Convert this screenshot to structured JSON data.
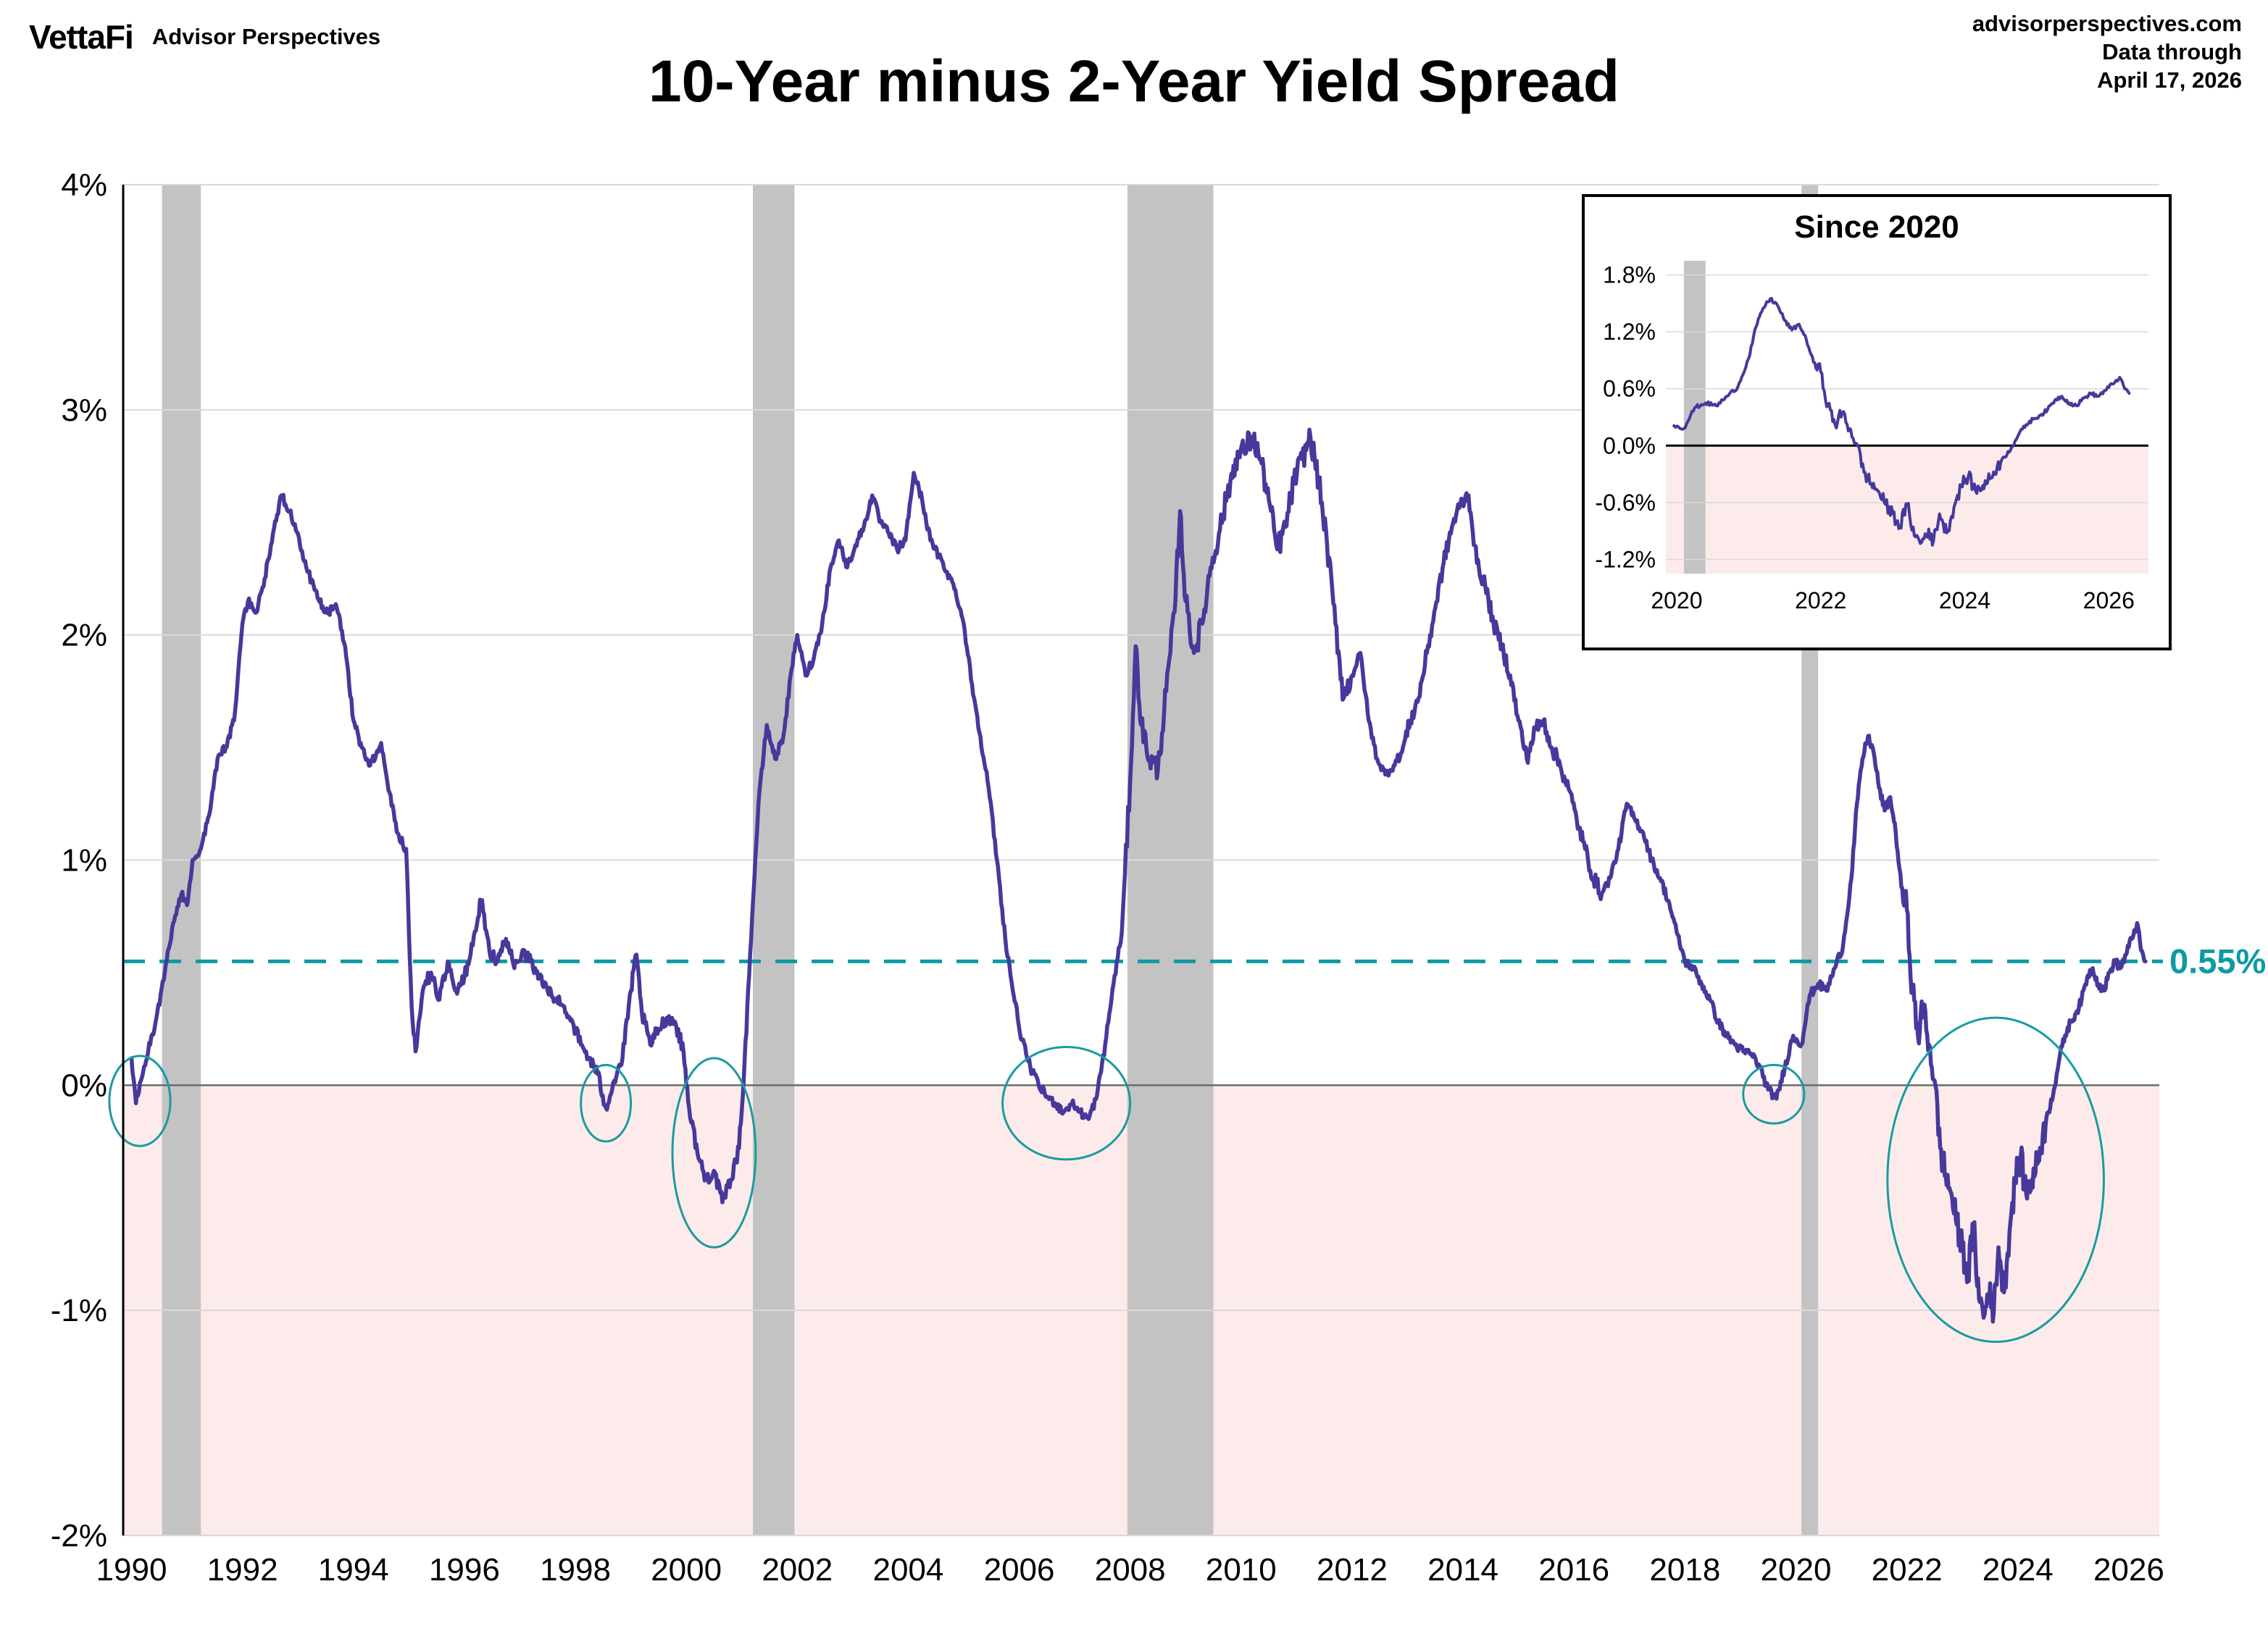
{
  "header": {
    "logo": "VettaFi",
    "logo_sub": "Advisor Perspectives",
    "title": "10-Year minus 2-Year Yield Spread",
    "source": "advisorperspectives.com",
    "data_through_label": "Data through",
    "data_through_date": "April 17, 2026"
  },
  "chart_data": {
    "type": "line",
    "title": "10-Year minus 2-Year Yield Spread",
    "xlabel": "",
    "ylabel": "",
    "xlim": [
      1989.85,
      2026.55
    ],
    "ylim": [
      -2,
      4
    ],
    "grid": true,
    "y_tick_values": [
      4,
      3,
      2,
      1,
      0,
      -1,
      -2
    ],
    "y_tick_labels": [
      "4%",
      "3%",
      "2%",
      "1%",
      "0%",
      "-1%",
      "-2%"
    ],
    "x_ticks": [
      1990,
      1992,
      1994,
      1996,
      1998,
      2000,
      2002,
      2004,
      2006,
      2008,
      2010,
      2012,
      2014,
      2016,
      2018,
      2020,
      2022,
      2024,
      2026
    ],
    "colors": {
      "line": "#46399b",
      "teal": "#0d9aa4",
      "recession": "#c3c3c3",
      "negative_fill": "#fcebea",
      "gridline": "#d9d9d9",
      "zero_line": "#6b6b6b"
    },
    "reference_line": {
      "value": 0.55,
      "label": "0.55%"
    },
    "recessions": [
      [
        1990.55,
        1991.25
      ],
      [
        2001.2,
        2001.95
      ],
      [
        2007.95,
        2009.5
      ],
      [
        2020.1,
        2020.4
      ]
    ],
    "inversion_circles": [
      {
        "cx": 1990.15,
        "cy": -0.07,
        "rx": 0.55,
        "ry": 0.2
      },
      {
        "cx": 1998.55,
        "cy": -0.08,
        "rx": 0.45,
        "ry": 0.17
      },
      {
        "cx": 2000.5,
        "cy": -0.3,
        "rx": 0.75,
        "ry": 0.42
      },
      {
        "cx": 2006.85,
        "cy": -0.08,
        "rx": 1.15,
        "ry": 0.25
      },
      {
        "cx": 2019.6,
        "cy": -0.04,
        "rx": 0.55,
        "ry": 0.13
      },
      {
        "cx": 2023.6,
        "cy": -0.42,
        "rx": 1.95,
        "ry": 0.72
      }
    ],
    "series": [
      {
        "name": "10-Year minus 2-Year Treasury Yield Spread",
        "points": [
          [
            1990.0,
            0.12
          ],
          [
            1990.08,
            -0.08
          ],
          [
            1990.17,
            0.02
          ],
          [
            1990.3,
            0.15
          ],
          [
            1990.45,
            0.3
          ],
          [
            1990.6,
            0.5
          ],
          [
            1990.75,
            0.72
          ],
          [
            1990.9,
            0.85
          ],
          [
            1991.0,
            0.8
          ],
          [
            1991.1,
            1.0
          ],
          [
            1991.25,
            1.05
          ],
          [
            1991.4,
            1.2
          ],
          [
            1991.55,
            1.45
          ],
          [
            1991.7,
            1.5
          ],
          [
            1991.85,
            1.62
          ],
          [
            1992.0,
            2.05
          ],
          [
            1992.1,
            2.15
          ],
          [
            1992.25,
            2.1
          ],
          [
            1992.4,
            2.25
          ],
          [
            1992.55,
            2.45
          ],
          [
            1992.7,
            2.62
          ],
          [
            1992.85,
            2.55
          ],
          [
            1993.0,
            2.45
          ],
          [
            1993.15,
            2.3
          ],
          [
            1993.3,
            2.2
          ],
          [
            1993.5,
            2.1
          ],
          [
            1993.7,
            2.12
          ],
          [
            1993.85,
            1.95
          ],
          [
            1994.0,
            1.62
          ],
          [
            1994.15,
            1.5
          ],
          [
            1994.3,
            1.42
          ],
          [
            1994.5,
            1.52
          ],
          [
            1994.65,
            1.3
          ],
          [
            1994.8,
            1.12
          ],
          [
            1994.95,
            1.05
          ],
          [
            1995.05,
            0.35
          ],
          [
            1995.12,
            0.15
          ],
          [
            1995.25,
            0.42
          ],
          [
            1995.4,
            0.5
          ],
          [
            1995.55,
            0.38
          ],
          [
            1995.7,
            0.55
          ],
          [
            1995.85,
            0.42
          ],
          [
            1996.0,
            0.48
          ],
          [
            1996.15,
            0.62
          ],
          [
            1996.3,
            0.82
          ],
          [
            1996.45,
            0.6
          ],
          [
            1996.6,
            0.55
          ],
          [
            1996.75,
            0.65
          ],
          [
            1996.9,
            0.52
          ],
          [
            1997.05,
            0.6
          ],
          [
            1997.2,
            0.55
          ],
          [
            1997.35,
            0.48
          ],
          [
            1997.5,
            0.42
          ],
          [
            1997.65,
            0.38
          ],
          [
            1997.8,
            0.35
          ],
          [
            1997.95,
            0.28
          ],
          [
            1998.1,
            0.18
          ],
          [
            1998.25,
            0.12
          ],
          [
            1998.4,
            0.05
          ],
          [
            1998.55,
            -0.1
          ],
          [
            1998.7,
            0.02
          ],
          [
            1998.85,
            0.12
          ],
          [
            1999.0,
            0.42
          ],
          [
            1999.1,
            0.58
          ],
          [
            1999.2,
            0.32
          ],
          [
            1999.35,
            0.18
          ],
          [
            1999.5,
            0.25
          ],
          [
            1999.65,
            0.3
          ],
          [
            1999.8,
            0.28
          ],
          [
            1999.95,
            0.15
          ],
          [
            2000.05,
            -0.1
          ],
          [
            2000.2,
            -0.3
          ],
          [
            2000.35,
            -0.42
          ],
          [
            2000.5,
            -0.38
          ],
          [
            2000.65,
            -0.52
          ],
          [
            2000.8,
            -0.42
          ],
          [
            2000.95,
            -0.28
          ],
          [
            2001.05,
            0.1
          ],
          [
            2001.15,
            0.58
          ],
          [
            2001.3,
            1.25
          ],
          [
            2001.45,
            1.6
          ],
          [
            2001.6,
            1.45
          ],
          [
            2001.75,
            1.55
          ],
          [
            2001.9,
            1.85
          ],
          [
            2002.0,
            2.0
          ],
          [
            2002.15,
            1.82
          ],
          [
            2002.3,
            1.9
          ],
          [
            2002.45,
            2.05
          ],
          [
            2002.6,
            2.3
          ],
          [
            2002.75,
            2.42
          ],
          [
            2002.9,
            2.3
          ],
          [
            2003.05,
            2.4
          ],
          [
            2003.2,
            2.48
          ],
          [
            2003.35,
            2.62
          ],
          [
            2003.5,
            2.5
          ],
          [
            2003.65,
            2.45
          ],
          [
            2003.8,
            2.38
          ],
          [
            2003.95,
            2.42
          ],
          [
            2004.1,
            2.72
          ],
          [
            2004.25,
            2.6
          ],
          [
            2004.4,
            2.42
          ],
          [
            2004.55,
            2.35
          ],
          [
            2004.7,
            2.28
          ],
          [
            2004.85,
            2.2
          ],
          [
            2005.0,
            2.05
          ],
          [
            2005.15,
            1.78
          ],
          [
            2005.3,
            1.55
          ],
          [
            2005.45,
            1.32
          ],
          [
            2005.6,
            1.0
          ],
          [
            2005.75,
            0.65
          ],
          [
            2005.9,
            0.4
          ],
          [
            2006.05,
            0.2
          ],
          [
            2006.2,
            0.08
          ],
          [
            2006.35,
            0.0
          ],
          [
            2006.5,
            -0.05
          ],
          [
            2006.65,
            -0.08
          ],
          [
            2006.8,
            -0.12
          ],
          [
            2006.95,
            -0.08
          ],
          [
            2007.1,
            -0.12
          ],
          [
            2007.25,
            -0.15
          ],
          [
            2007.4,
            -0.05
          ],
          [
            2007.55,
            0.18
          ],
          [
            2007.7,
            0.45
          ],
          [
            2007.85,
            0.68
          ],
          [
            2008.0,
            1.35
          ],
          [
            2008.1,
            1.95
          ],
          [
            2008.2,
            1.6
          ],
          [
            2008.35,
            1.45
          ],
          [
            2008.5,
            1.4
          ],
          [
            2008.65,
            1.75
          ],
          [
            2008.8,
            2.1
          ],
          [
            2008.9,
            2.55
          ],
          [
            2009.0,
            2.15
          ],
          [
            2009.15,
            1.92
          ],
          [
            2009.3,
            2.05
          ],
          [
            2009.45,
            2.3
          ],
          [
            2009.6,
            2.45
          ],
          [
            2009.75,
            2.62
          ],
          [
            2009.9,
            2.78
          ],
          [
            2010.05,
            2.82
          ],
          [
            2010.2,
            2.88
          ],
          [
            2010.35,
            2.78
          ],
          [
            2010.5,
            2.6
          ],
          [
            2010.65,
            2.38
          ],
          [
            2010.8,
            2.48
          ],
          [
            2010.95,
            2.68
          ],
          [
            2011.1,
            2.78
          ],
          [
            2011.25,
            2.88
          ],
          [
            2011.4,
            2.68
          ],
          [
            2011.55,
            2.4
          ],
          [
            2011.7,
            2.05
          ],
          [
            2011.85,
            1.72
          ],
          [
            2012.0,
            1.82
          ],
          [
            2012.15,
            1.92
          ],
          [
            2012.3,
            1.62
          ],
          [
            2012.45,
            1.45
          ],
          [
            2012.6,
            1.38
          ],
          [
            2012.75,
            1.42
          ],
          [
            2012.9,
            1.48
          ],
          [
            2013.05,
            1.62
          ],
          [
            2013.2,
            1.72
          ],
          [
            2013.35,
            1.92
          ],
          [
            2013.5,
            2.12
          ],
          [
            2013.65,
            2.32
          ],
          [
            2013.8,
            2.48
          ],
          [
            2013.95,
            2.58
          ],
          [
            2014.1,
            2.62
          ],
          [
            2014.25,
            2.32
          ],
          [
            2014.4,
            2.22
          ],
          [
            2014.55,
            2.05
          ],
          [
            2014.7,
            1.95
          ],
          [
            2014.85,
            1.82
          ],
          [
            2015.0,
            1.62
          ],
          [
            2015.15,
            1.45
          ],
          [
            2015.3,
            1.58
          ],
          [
            2015.45,
            1.62
          ],
          [
            2015.6,
            1.5
          ],
          [
            2015.75,
            1.42
          ],
          [
            2015.9,
            1.32
          ],
          [
            2016.05,
            1.18
          ],
          [
            2016.2,
            1.05
          ],
          [
            2016.35,
            0.92
          ],
          [
            2016.5,
            0.85
          ],
          [
            2016.65,
            0.92
          ],
          [
            2016.8,
            1.05
          ],
          [
            2016.95,
            1.25
          ],
          [
            2017.1,
            1.18
          ],
          [
            2017.25,
            1.12
          ],
          [
            2017.4,
            1.0
          ],
          [
            2017.55,
            0.92
          ],
          [
            2017.7,
            0.82
          ],
          [
            2017.85,
            0.68
          ],
          [
            2018.0,
            0.55
          ],
          [
            2018.15,
            0.52
          ],
          [
            2018.3,
            0.45
          ],
          [
            2018.45,
            0.38
          ],
          [
            2018.6,
            0.28
          ],
          [
            2018.75,
            0.22
          ],
          [
            2018.9,
            0.18
          ],
          [
            2019.05,
            0.15
          ],
          [
            2019.2,
            0.14
          ],
          [
            2019.35,
            0.08
          ],
          [
            2019.5,
            -0.02
          ],
          [
            2019.65,
            -0.06
          ],
          [
            2019.8,
            0.08
          ],
          [
            2019.95,
            0.22
          ],
          [
            2020.1,
            0.18
          ],
          [
            2020.25,
            0.4
          ],
          [
            2020.4,
            0.45
          ],
          [
            2020.55,
            0.42
          ],
          [
            2020.7,
            0.52
          ],
          [
            2020.85,
            0.62
          ],
          [
            2021.0,
            0.92
          ],
          [
            2021.1,
            1.25
          ],
          [
            2021.2,
            1.45
          ],
          [
            2021.3,
            1.55
          ],
          [
            2021.4,
            1.48
          ],
          [
            2021.5,
            1.32
          ],
          [
            2021.6,
            1.22
          ],
          [
            2021.7,
            1.28
          ],
          [
            2021.8,
            1.12
          ],
          [
            2021.9,
            0.88
          ],
          [
            2022.0,
            0.78
          ],
          [
            2022.1,
            0.42
          ],
          [
            2022.2,
            0.22
          ],
          [
            2022.3,
            0.35
          ],
          [
            2022.4,
            0.18
          ],
          [
            2022.5,
            0.02
          ],
          [
            2022.6,
            -0.28
          ],
          [
            2022.7,
            -0.4
          ],
          [
            2022.8,
            -0.48
          ],
          [
            2022.9,
            -0.62
          ],
          [
            2023.0,
            -0.72
          ],
          [
            2023.1,
            -0.85
          ],
          [
            2023.2,
            -0.62
          ],
          [
            2023.3,
            -0.95
          ],
          [
            2023.4,
            -1.02
          ],
          [
            2023.5,
            -0.88
          ],
          [
            2023.55,
            -1.05
          ],
          [
            2023.65,
            -0.72
          ],
          [
            2023.75,
            -0.92
          ],
          [
            2023.85,
            -0.65
          ],
          [
            2023.95,
            -0.42
          ],
          [
            2024.05,
            -0.32
          ],
          [
            2024.15,
            -0.48
          ],
          [
            2024.25,
            -0.42
          ],
          [
            2024.35,
            -0.35
          ],
          [
            2024.45,
            -0.22
          ],
          [
            2024.55,
            -0.12
          ],
          [
            2024.65,
            -0.02
          ],
          [
            2024.75,
            0.12
          ],
          [
            2024.85,
            0.22
          ],
          [
            2024.95,
            0.28
          ],
          [
            2025.05,
            0.32
          ],
          [
            2025.15,
            0.38
          ],
          [
            2025.25,
            0.48
          ],
          [
            2025.35,
            0.52
          ],
          [
            2025.45,
            0.45
          ],
          [
            2025.55,
            0.42
          ],
          [
            2025.65,
            0.5
          ],
          [
            2025.75,
            0.55
          ],
          [
            2025.85,
            0.52
          ],
          [
            2025.95,
            0.58
          ],
          [
            2026.05,
            0.65
          ],
          [
            2026.15,
            0.72
          ],
          [
            2026.22,
            0.6
          ],
          [
            2026.3,
            0.55
          ]
        ]
      }
    ],
    "inset": {
      "title": "Since 2020",
      "xlim": [
        2019.85,
        2026.55
      ],
      "ylim": [
        -1.35,
        1.95
      ],
      "y_tick_values": [
        1.8,
        1.2,
        0.6,
        0.0,
        -0.6,
        -1.2
      ],
      "y_tick_labels": [
        "1.8%",
        "1.2%",
        "0.6%",
        "0.0%",
        "-0.6%",
        "-1.2%"
      ],
      "x_ticks": [
        2020,
        2022,
        2024,
        2026
      ],
      "recessions": [
        [
          2020.1,
          2020.4
        ]
      ]
    }
  }
}
